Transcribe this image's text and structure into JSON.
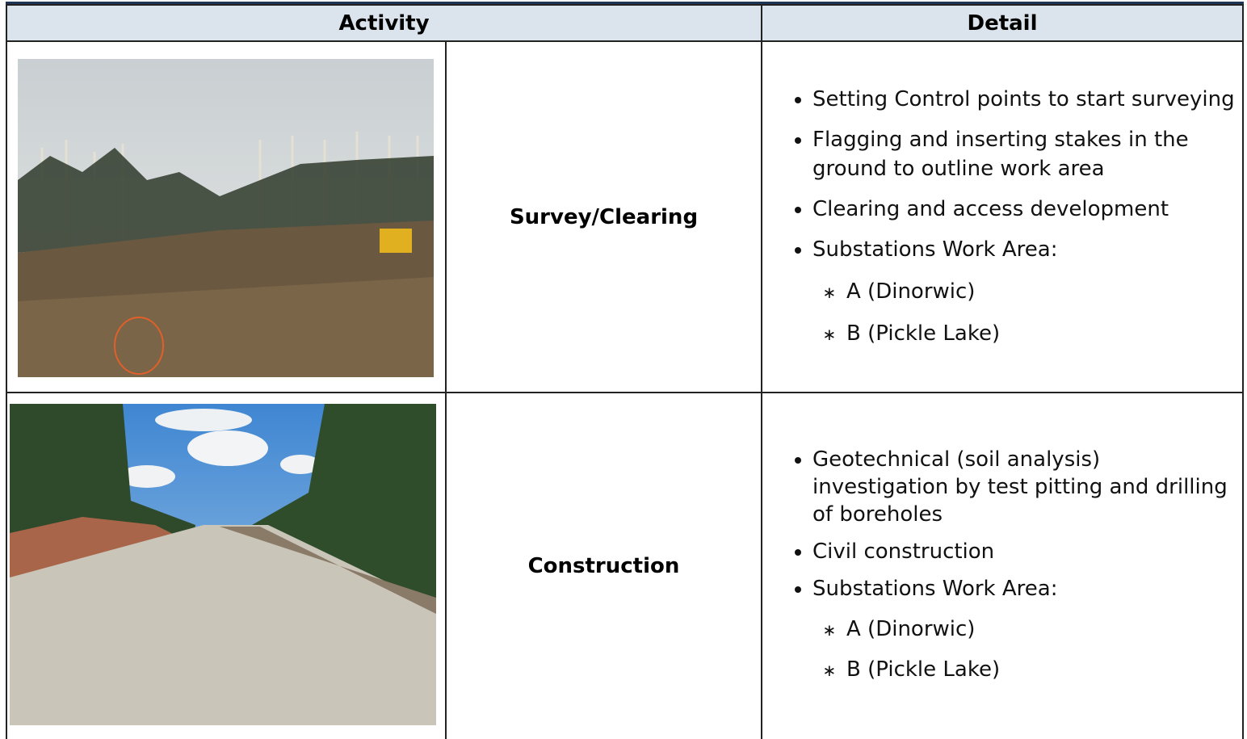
{
  "header": {
    "activity": "Activity",
    "detail": "Detail"
  },
  "rows": [
    {
      "activity": "Survey/Clearing",
      "details": [
        {
          "text": "Setting Control points to start surveying"
        },
        {
          "text": "Flagging and inserting stakes in the ground to outline work area"
        },
        {
          "text": "Clearing and access development"
        },
        {
          "text": "Substations Work Area:",
          "sub": [
            "A (Dinorwic)",
            "B (Pickle Lake)"
          ]
        }
      ]
    },
    {
      "activity": "Construction",
      "details": [
        {
          "text": "Geotechnical (soil analysis) investigation by test pitting and drilling of boreholes"
        },
        {
          "text": "Civil construction"
        },
        {
          "text": "Substations Work Area:",
          "sub": [
            "A (Dinorwic)",
            "B (Pickle Lake)"
          ]
        }
      ]
    }
  ]
}
